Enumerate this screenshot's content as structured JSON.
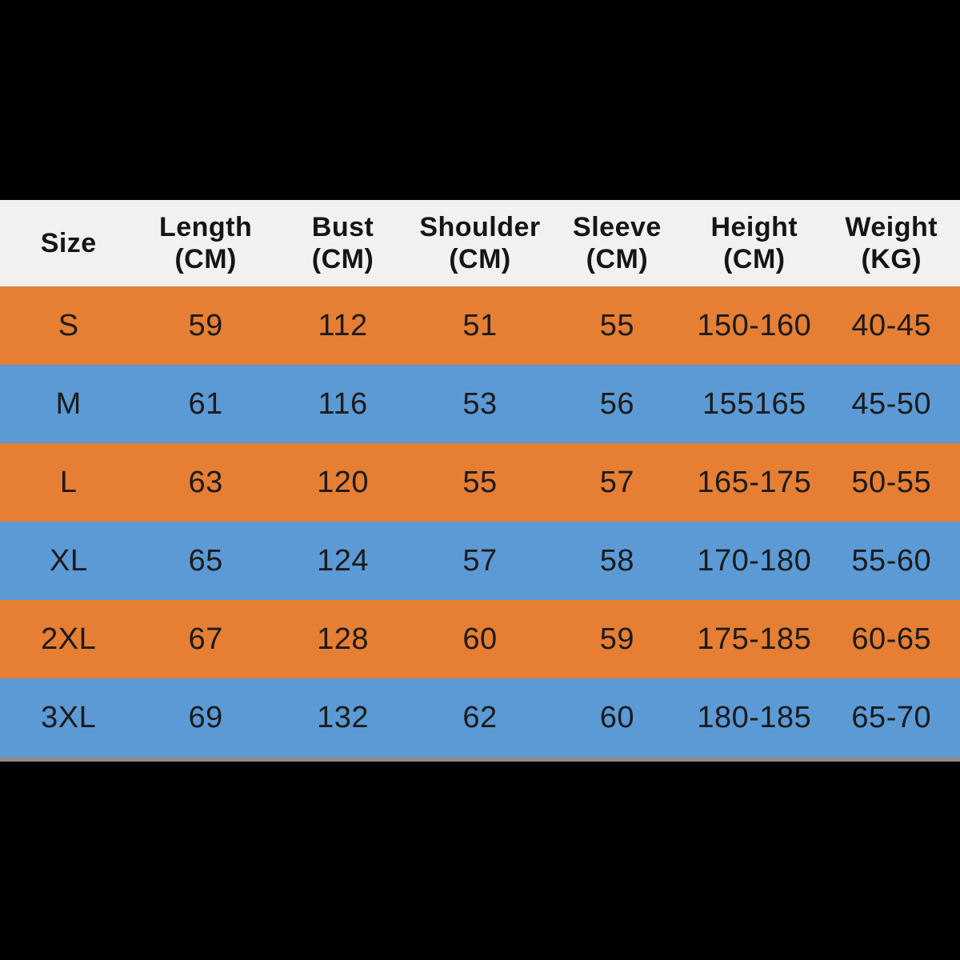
{
  "colors": {
    "background": "#000000",
    "header_bg": "#F2F1EF",
    "row_orange": "#E67E33",
    "row_blue": "#5B9AD5",
    "text": "#1B1B1B",
    "bottom_strip": "#8C8C8C"
  },
  "table": {
    "columns": [
      {
        "key": "size",
        "label": "Size",
        "sub": ""
      },
      {
        "key": "length",
        "label": "Length",
        "sub": "(CM)"
      },
      {
        "key": "bust",
        "label": "Bust",
        "sub": "(CM)"
      },
      {
        "key": "shoulder",
        "label": "Shoulder",
        "sub": "(CM)"
      },
      {
        "key": "sleeve",
        "label": "Sleeve",
        "sub": "(CM)"
      },
      {
        "key": "height",
        "label": "Height",
        "sub": "(CM)"
      },
      {
        "key": "weight",
        "label": "Weight",
        "sub": "(KG)"
      }
    ],
    "rows": [
      [
        "S",
        "59",
        "112",
        "51",
        "55",
        "150-160",
        "40-45"
      ],
      [
        "M",
        "61",
        "116",
        "53",
        "56",
        "155165",
        "45-50"
      ],
      [
        "L",
        "63",
        "120",
        "55",
        "57",
        "165-175",
        "50-55"
      ],
      [
        "XL",
        "65",
        "124",
        "57",
        "58",
        "170-180",
        "55-60"
      ],
      [
        "2XL",
        "67",
        "128",
        "60",
        "59",
        "175-185",
        "60-65"
      ],
      [
        "3XL",
        "69",
        "132",
        "62",
        "60",
        "180-185",
        "65-70"
      ]
    ]
  },
  "chart_data": {
    "type": "table",
    "title": "Garment size chart",
    "columns": [
      "Size",
      "Length (CM)",
      "Bust (CM)",
      "Shoulder (CM)",
      "Sleeve (CM)",
      "Height (CM)",
      "Weight (KG)"
    ],
    "rows": [
      [
        "S",
        "59",
        "112",
        "51",
        "55",
        "150-160",
        "40-45"
      ],
      [
        "M",
        "61",
        "116",
        "53",
        "56",
        "155165",
        "45-50"
      ],
      [
        "L",
        "63",
        "120",
        "55",
        "57",
        "165-175",
        "50-55"
      ],
      [
        "XL",
        "65",
        "124",
        "57",
        "58",
        "170-180",
        "55-60"
      ],
      [
        "2XL",
        "67",
        "128",
        "60",
        "59",
        "175-185",
        "60-65"
      ],
      [
        "3XL",
        "69",
        "132",
        "62",
        "60",
        "180-185",
        "65-70"
      ]
    ],
    "layout_hints": {
      "row_fill_alternating": [
        "#E67E33",
        "#5B9AD5"
      ],
      "header_fill": "#F2F1EF",
      "page_background": "#000000",
      "grid": "off"
    }
  }
}
